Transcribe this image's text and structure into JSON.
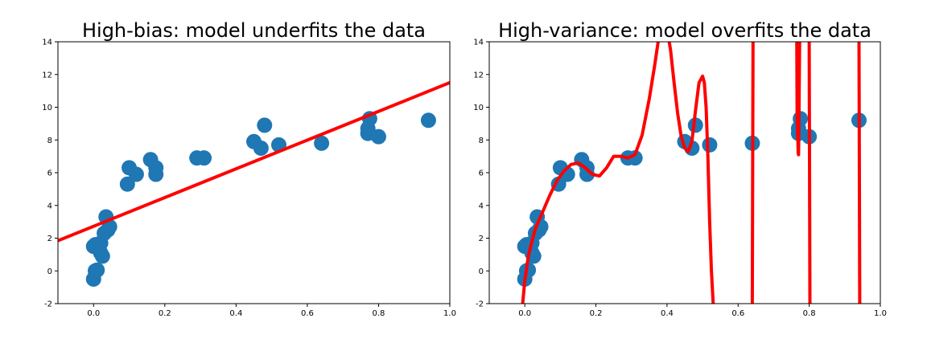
{
  "chart_data": [
    {
      "type": "scatter",
      "title": "High-bias: model underfits the data",
      "xlim": [
        -0.1,
        1.0
      ],
      "ylim": [
        -2,
        14
      ],
      "xticks": [
        "0.0",
        "0.2",
        "0.4",
        "0.6",
        "0.8",
        "1.0"
      ],
      "yticks": [
        "-2",
        "0",
        "2",
        "4",
        "6",
        "8",
        "10",
        "12",
        "14"
      ],
      "grid": false,
      "series": [
        {
          "kind": "scatter",
          "color": "#1f77b4",
          "x": [
            0.0,
            0.005,
            0.01,
            0.0,
            0.005,
            0.02,
            0.02,
            0.025,
            0.03,
            0.04,
            0.035,
            0.045,
            0.095,
            0.1,
            0.12,
            0.16,
            0.175,
            0.175,
            0.29,
            0.31,
            0.45,
            0.47,
            0.48,
            0.52,
            0.64,
            0.77,
            0.77,
            0.775,
            0.8,
            0.94
          ],
          "y": [
            -0.5,
            0.0,
            0.05,
            1.5,
            1.6,
            1.7,
            1.1,
            0.9,
            2.3,
            2.5,
            3.3,
            2.7,
            5.3,
            6.3,
            5.9,
            6.8,
            6.3,
            5.9,
            6.9,
            6.9,
            7.9,
            7.5,
            8.9,
            7.7,
            7.8,
            8.7,
            8.4,
            9.3,
            8.2,
            9.2
          ]
        },
        {
          "kind": "line",
          "color": "#ff0000",
          "x": [
            -0.1,
            1.0
          ],
          "y": [
            1.85,
            11.5
          ]
        }
      ]
    },
    {
      "type": "scatter",
      "title": "High-variance: model overfits the data",
      "xlim": [
        -0.1,
        1.0
      ],
      "ylim": [
        -2,
        14
      ],
      "xticks": [
        "0.0",
        "0.2",
        "0.4",
        "0.6",
        "0.8",
        "1.0"
      ],
      "yticks": [
        "-2",
        "0",
        "2",
        "4",
        "6",
        "8",
        "10",
        "12",
        "14"
      ],
      "grid": false,
      "series": [
        {
          "kind": "scatter",
          "color": "#1f77b4",
          "x": [
            0.0,
            0.005,
            0.01,
            0.0,
            0.005,
            0.02,
            0.02,
            0.025,
            0.03,
            0.04,
            0.035,
            0.045,
            0.095,
            0.1,
            0.12,
            0.16,
            0.175,
            0.175,
            0.29,
            0.31,
            0.45,
            0.47,
            0.48,
            0.52,
            0.64,
            0.77,
            0.77,
            0.775,
            0.8,
            0.94
          ],
          "y": [
            -0.5,
            0.0,
            0.05,
            1.5,
            1.6,
            1.7,
            1.1,
            0.9,
            2.3,
            2.5,
            3.3,
            2.7,
            5.3,
            6.3,
            5.9,
            6.8,
            6.3,
            5.9,
            6.9,
            6.9,
            7.9,
            7.5,
            8.9,
            7.7,
            7.8,
            8.7,
            8.4,
            9.3,
            8.2,
            9.2
          ]
        },
        {
          "kind": "line",
          "color": "#ff0000",
          "x": [
            -0.006,
            0.0,
            0.01,
            0.02,
            0.03,
            0.05,
            0.07,
            0.09,
            0.11,
            0.13,
            0.15,
            0.17,
            0.19,
            0.21,
            0.23,
            0.25,
            0.27,
            0.29,
            0.31,
            0.33,
            0.35,
            0.365,
            0.375,
            0.38,
            0.4,
            0.41,
            0.42,
            0.43,
            0.44,
            0.45,
            0.46,
            0.47,
            0.48,
            0.49,
            0.5,
            0.505,
            0.51,
            0.515,
            0.52,
            0.525,
            0.53
          ],
          "y": [
            -2.0,
            -0.6,
            0.9,
            1.8,
            2.6,
            3.6,
            4.6,
            5.5,
            6.1,
            6.5,
            6.6,
            6.3,
            5.9,
            5.8,
            6.3,
            7.0,
            7.0,
            6.9,
            7.1,
            8.3,
            10.5,
            12.5,
            14.0,
            14.8,
            14.8,
            13.5,
            11.5,
            9.6,
            8.2,
            7.5,
            7.3,
            7.9,
            9.8,
            11.5,
            11.9,
            11.5,
            10.0,
            7.0,
            3.0,
            0.0,
            -2.0
          ]
        },
        {
          "kind": "line",
          "color": "#ff0000",
          "x": [
            0.64,
            0.642
          ],
          "y": [
            -2.0,
            14.0
          ]
        },
        {
          "kind": "line",
          "color": "#ff0000",
          "x": [
            0.765,
            0.766,
            0.768,
            0.769,
            0.77,
            0.771,
            0.773
          ],
          "y": [
            14.0,
            9.5,
            8.0,
            7.2,
            7.1,
            9.0,
            14.0
          ]
        },
        {
          "kind": "line",
          "color": "#ff0000",
          "x": [
            0.8,
            0.802
          ],
          "y": [
            14.0,
            -2.0
          ]
        },
        {
          "kind": "line",
          "color": "#ff0000",
          "x": [
            0.94,
            0.942
          ],
          "y": [
            14.0,
            -2.0
          ]
        }
      ]
    }
  ]
}
